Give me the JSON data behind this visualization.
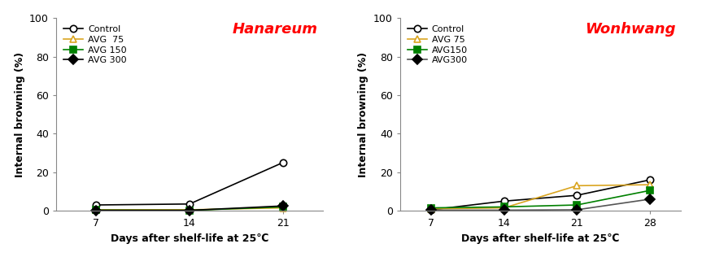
{
  "left": {
    "title": "Hanareum",
    "x": [
      7,
      14,
      21
    ],
    "series": [
      {
        "label": "Control",
        "color": "#000000",
        "marker": "o",
        "mfc": "white",
        "mec": "#000000",
        "data": [
          3.0,
          3.5,
          25.0
        ]
      },
      {
        "label": "AVG  75",
        "color": "#DAA520",
        "marker": "^",
        "mfc": "white",
        "mec": "#DAA520",
        "data": [
          0.5,
          0.5,
          1.5
        ]
      },
      {
        "label": "AVG 150",
        "color": "#008000",
        "marker": "s",
        "mfc": "#008000",
        "mec": "#008000",
        "data": [
          0.3,
          0.2,
          2.0
        ]
      },
      {
        "label": "AVG 300",
        "color": "#000000",
        "marker": "D",
        "mfc": "#000000",
        "mec": "#000000",
        "data": [
          0.2,
          0.2,
          2.5
        ]
      }
    ],
    "xlabel": "Days after shelf-life at 25℃",
    "ylabel": "Internal browning (%)",
    "ylim": [
      0,
      100
    ],
    "yticks": [
      0,
      20,
      40,
      60,
      80,
      100
    ],
    "xticks": [
      7,
      14,
      21
    ],
    "xlim": [
      4,
      24
    ]
  },
  "right": {
    "title": "Wonhwang",
    "x": [
      7,
      14,
      21,
      28
    ],
    "series": [
      {
        "label": "Control",
        "color": "#000000",
        "marker": "o",
        "mfc": "white",
        "mec": "#000000",
        "data": [
          0.5,
          5.0,
          8.0,
          16.0
        ]
      },
      {
        "label": "AVG 75",
        "color": "#DAA520",
        "marker": "^",
        "mfc": "white",
        "mec": "#DAA520",
        "data": [
          1.0,
          1.5,
          13.0,
          13.5
        ]
      },
      {
        "label": "AVG150",
        "color": "#008000",
        "marker": "s",
        "mfc": "#008000",
        "mec": "#008000",
        "data": [
          1.5,
          2.0,
          3.0,
          10.5
        ]
      },
      {
        "label": "AVG300",
        "color": "#555555",
        "marker": "D",
        "mfc": "#000000",
        "mec": "#000000",
        "data": [
          0.3,
          0.3,
          0.5,
          6.0
        ]
      }
    ],
    "xlabel": "Days after shelf-life at 25℃",
    "ylabel": "Internal browning (%)",
    "ylim": [
      0,
      100
    ],
    "yticks": [
      0,
      20,
      40,
      60,
      80,
      100
    ],
    "xticks": [
      7,
      14,
      21,
      28
    ],
    "xlim": [
      4,
      31
    ]
  }
}
